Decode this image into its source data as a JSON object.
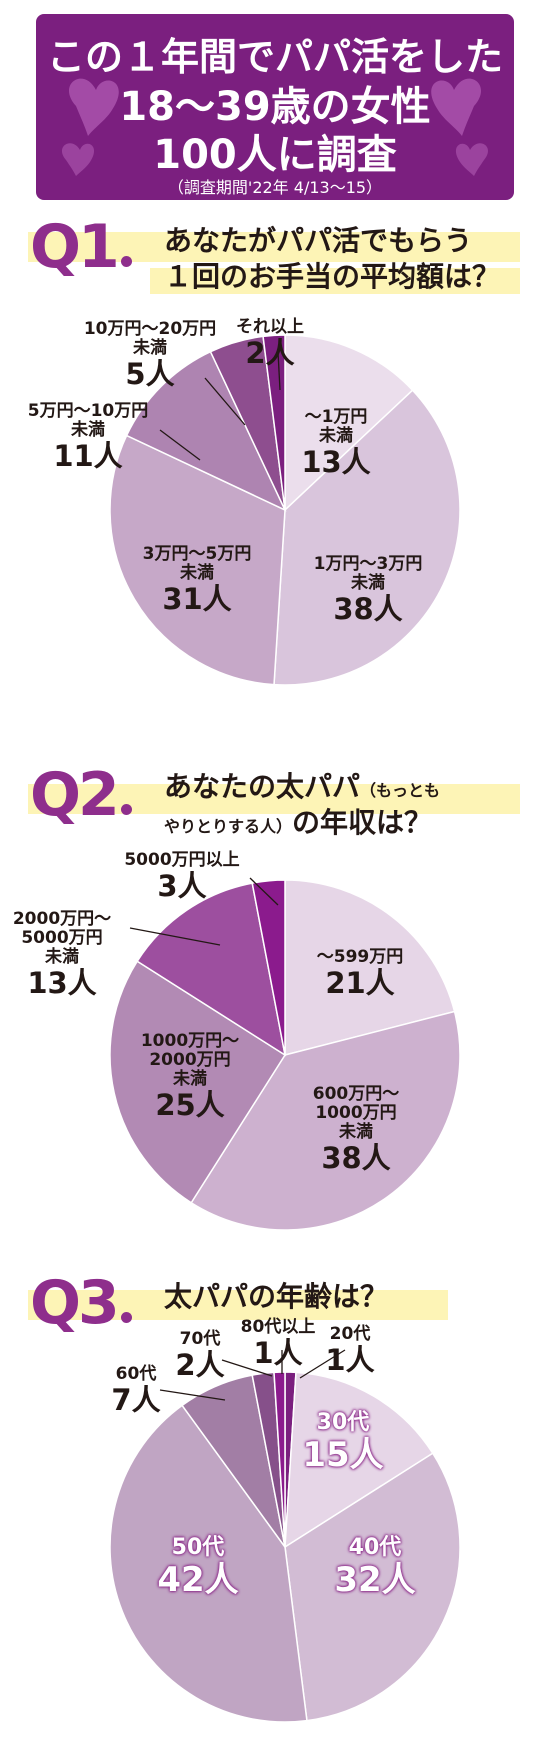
{
  "header": {
    "line1": "この１年間でパパ活をした",
    "line2": "18〜39歳の女性",
    "line3": "100人に調査",
    "line4": "（調査期間'22年 4/13〜15）"
  },
  "colors": {
    "header_bg": "#7b1f7f",
    "accent": "#8e2e8c",
    "highlight_band": "#fdf4b6"
  },
  "q1": {
    "num": "Q1",
    "line1": "あなたがパパ活でもらう",
    "line2": "１回のお手当の平均額は？"
  },
  "q2": {
    "num": "Q2",
    "line1a": "あなたの太パパ",
    "line1b": "（もっとも",
    "line2a": "やりとりする人）",
    "line2b": "の年収は？"
  },
  "q3": {
    "num": "Q3",
    "line1": "太パパの年齢は？"
  },
  "chart_data": [
    {
      "type": "pie",
      "title": "あなたがパパ活でもらう１回のお手当の平均額は？",
      "categories": [
        "〜1万円未満",
        "1万円〜3万円未満",
        "3万円〜5万円未満",
        "5万円〜10万円未満",
        "10万円〜20万円未満",
        "それ以上"
      ],
      "values": [
        13,
        38,
        31,
        11,
        5,
        2
      ],
      "value_labels": [
        "13人",
        "38人",
        "31人",
        "11人",
        "5人",
        "2人"
      ],
      "label_lines": [
        [
          "〜1万円",
          "未満"
        ],
        [
          "1万円〜3万円",
          "未満"
        ],
        [
          "3万円〜5万円",
          "未満"
        ],
        [
          "5万円〜10万円",
          "未満"
        ],
        [
          "10万円〜20万円",
          "未満"
        ],
        [
          "それ以上"
        ]
      ],
      "colors": [
        "#ebdeec",
        "#d9c5dc",
        "#c6a8c8",
        "#ae84b1",
        "#8e4e8f",
        "#7b1f7f"
      ]
    },
    {
      "type": "pie",
      "title": "あなたの太パパ（もっともやりとりする人）の年収は？",
      "categories": [
        "〜599万円",
        "600万円〜1000万円未満",
        "1000万円〜2000万円未満",
        "2000万円〜5000万円未満",
        "5000万円以上"
      ],
      "values": [
        21,
        38,
        25,
        13,
        3
      ],
      "value_labels": [
        "21人",
        "38人",
        "25人",
        "13人",
        "3人"
      ],
      "label_lines": [
        [
          "〜599万円"
        ],
        [
          "600万円〜",
          "1000万円",
          "未満"
        ],
        [
          "1000万円〜",
          "2000万円",
          "未満"
        ],
        [
          "2000万円〜",
          "5000万円",
          "未満"
        ],
        [
          "5000万円以上"
        ]
      ],
      "colors": [
        "#e6d6e7",
        "#cdb1cf",
        "#b28ab4",
        "#9d4f9f",
        "#8b1b8d"
      ]
    },
    {
      "type": "pie",
      "title": "太パパの年齢は？",
      "categories": [
        "20代",
        "30代",
        "40代",
        "50代",
        "60代",
        "70代",
        "80代以上"
      ],
      "values": [
        1,
        15,
        32,
        42,
        7,
        2,
        1
      ],
      "value_labels": [
        "1人",
        "15人",
        "32人",
        "42人",
        "7人",
        "2人",
        "1人"
      ],
      "label_lines": [
        [
          "20代"
        ],
        [
          "30代"
        ],
        [
          "40代"
        ],
        [
          "50代"
        ],
        [
          "60代"
        ],
        [
          "70代"
        ],
        [
          "80代以上"
        ]
      ],
      "colors": [
        "#7b1f7f",
        "#e6d6e7",
        "#d2bcd4",
        "#c0a5c3",
        "#a27ea5",
        "#86508a",
        "#8b1b8d"
      ]
    }
  ]
}
